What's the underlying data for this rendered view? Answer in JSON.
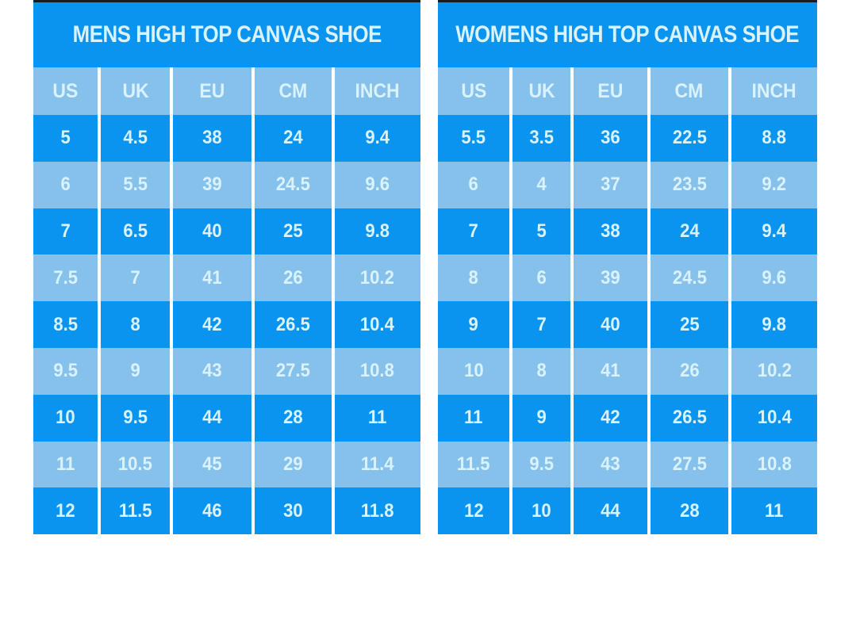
{
  "colors": {
    "dark_blue": "#0994f0",
    "light_blue": "#85c1eb",
    "text_light": "#daf2fe",
    "page_background": "#ffffff",
    "top_edge_line": "#101e2a"
  },
  "chart_data": [
    {
      "type": "table",
      "title": "MENS HIGH TOP CANVAS SHOE",
      "columns": [
        "US",
        "UK",
        "EU",
        "CM",
        "INCH"
      ],
      "rows": [
        [
          "5",
          "4.5",
          "38",
          "24",
          "9.4"
        ],
        [
          "6",
          "5.5",
          "39",
          "24.5",
          "9.6"
        ],
        [
          "7",
          "6.5",
          "40",
          "25",
          "9.8"
        ],
        [
          "7.5",
          "7",
          "41",
          "26",
          "10.2"
        ],
        [
          "8.5",
          "8",
          "42",
          "26.5",
          "10.4"
        ],
        [
          "9.5",
          "9",
          "43",
          "27.5",
          "10.8"
        ],
        [
          "10",
          "9.5",
          "44",
          "28",
          "11"
        ],
        [
          "11",
          "10.5",
          "45",
          "29",
          "11.4"
        ],
        [
          "12",
          "11.5",
          "46",
          "30",
          "11.8"
        ]
      ],
      "layout_hints": {
        "row_striping": "alternating dark/light blue starting dark",
        "separators": "white vertical lines between columns"
      }
    },
    {
      "type": "table",
      "title": "WOMENS HIGH TOP CANVAS SHOE",
      "columns": [
        "US",
        "UK",
        "EU",
        "CM",
        "INCH"
      ],
      "rows": [
        [
          "5.5",
          "3.5",
          "36",
          "22.5",
          "8.8"
        ],
        [
          "6",
          "4",
          "37",
          "23.5",
          "9.2"
        ],
        [
          "7",
          "5",
          "38",
          "24",
          "9.4"
        ],
        [
          "8",
          "6",
          "39",
          "24.5",
          "9.6"
        ],
        [
          "9",
          "7",
          "40",
          "25",
          "9.8"
        ],
        [
          "10",
          "8",
          "41",
          "26",
          "10.2"
        ],
        [
          "11",
          "9",
          "42",
          "26.5",
          "10.4"
        ],
        [
          "11.5",
          "9.5",
          "43",
          "27.5",
          "10.8"
        ],
        [
          "12",
          "10",
          "44",
          "28",
          "11"
        ]
      ],
      "layout_hints": {
        "row_striping": "alternating dark/light blue starting dark",
        "separators": "white vertical lines between columns"
      }
    }
  ]
}
